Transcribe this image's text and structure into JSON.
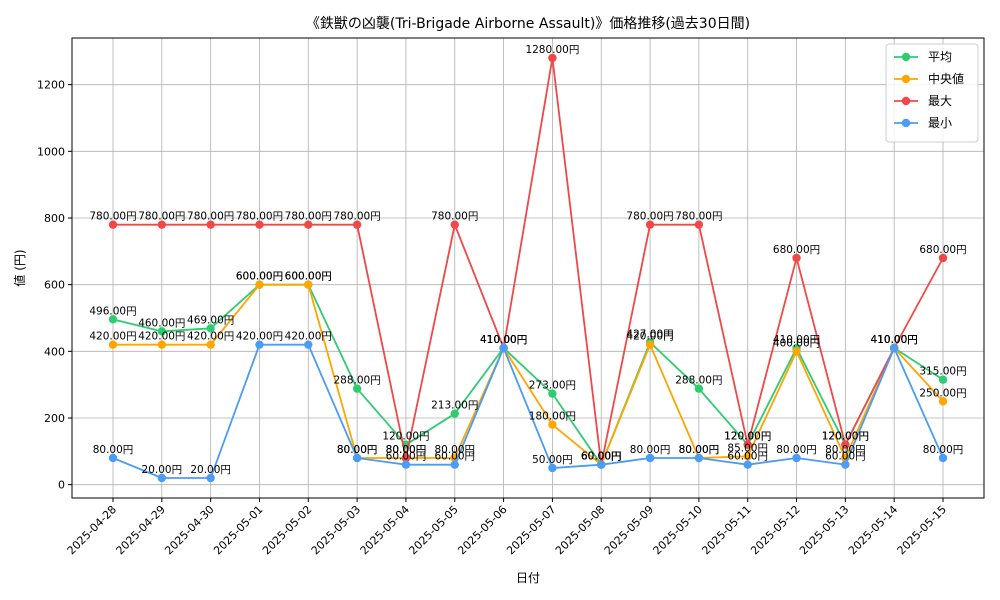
{
  "chart_data": {
    "type": "line",
    "title": "《鉄獣の凶襲(Tri-Brigade Airborne Assault)》価格推移(過去30日間)",
    "xlabel": "日付",
    "ylabel": "値 (円)",
    "ylim": [
      -40,
      1340
    ],
    "yticks": [
      0,
      200,
      400,
      600,
      800,
      1000,
      1200
    ],
    "grid": true,
    "legend_position": "top-right",
    "value_suffix": "円",
    "categories": [
      "2025-04-28",
      "2025-04-29",
      "2025-04-30",
      "2025-05-01",
      "2025-05-02",
      "2025-05-03",
      "2025-05-04",
      "2025-05-05",
      "2025-05-06",
      "2025-05-07",
      "2025-05-08",
      "2025-05-09",
      "2025-05-10",
      "2025-05-11",
      "2025-05-12",
      "2025-05-13",
      "2025-05-14",
      "2025-05-15"
    ],
    "series": [
      {
        "name": "平均",
        "color": "#2ecc71",
        "values": [
          496,
          460,
          469,
          600,
          600,
          288,
          120,
          213,
          410,
          273,
          60,
          427,
          288,
          120,
          410,
          120,
          410,
          315
        ]
      },
      {
        "name": "中央値",
        "color": "#ffa500",
        "values": [
          420,
          420,
          420,
          600,
          600,
          80,
          80,
          80,
          410,
          180,
          60,
          420,
          80,
          85,
          400,
          80,
          410,
          250
        ]
      },
      {
        "name": "最大",
        "color": "#f04848",
        "values": [
          780,
          780,
          780,
          780,
          780,
          780,
          80,
          780,
          410,
          1280,
          60,
          780,
          780,
          120,
          680,
          120,
          410,
          680
        ]
      },
      {
        "name": "最小",
        "color": "#4a9cf5",
        "values": [
          80,
          20,
          20,
          420,
          420,
          80,
          60,
          60,
          410,
          50,
          60,
          80,
          80,
          60,
          80,
          60,
          410,
          80
        ]
      }
    ]
  }
}
